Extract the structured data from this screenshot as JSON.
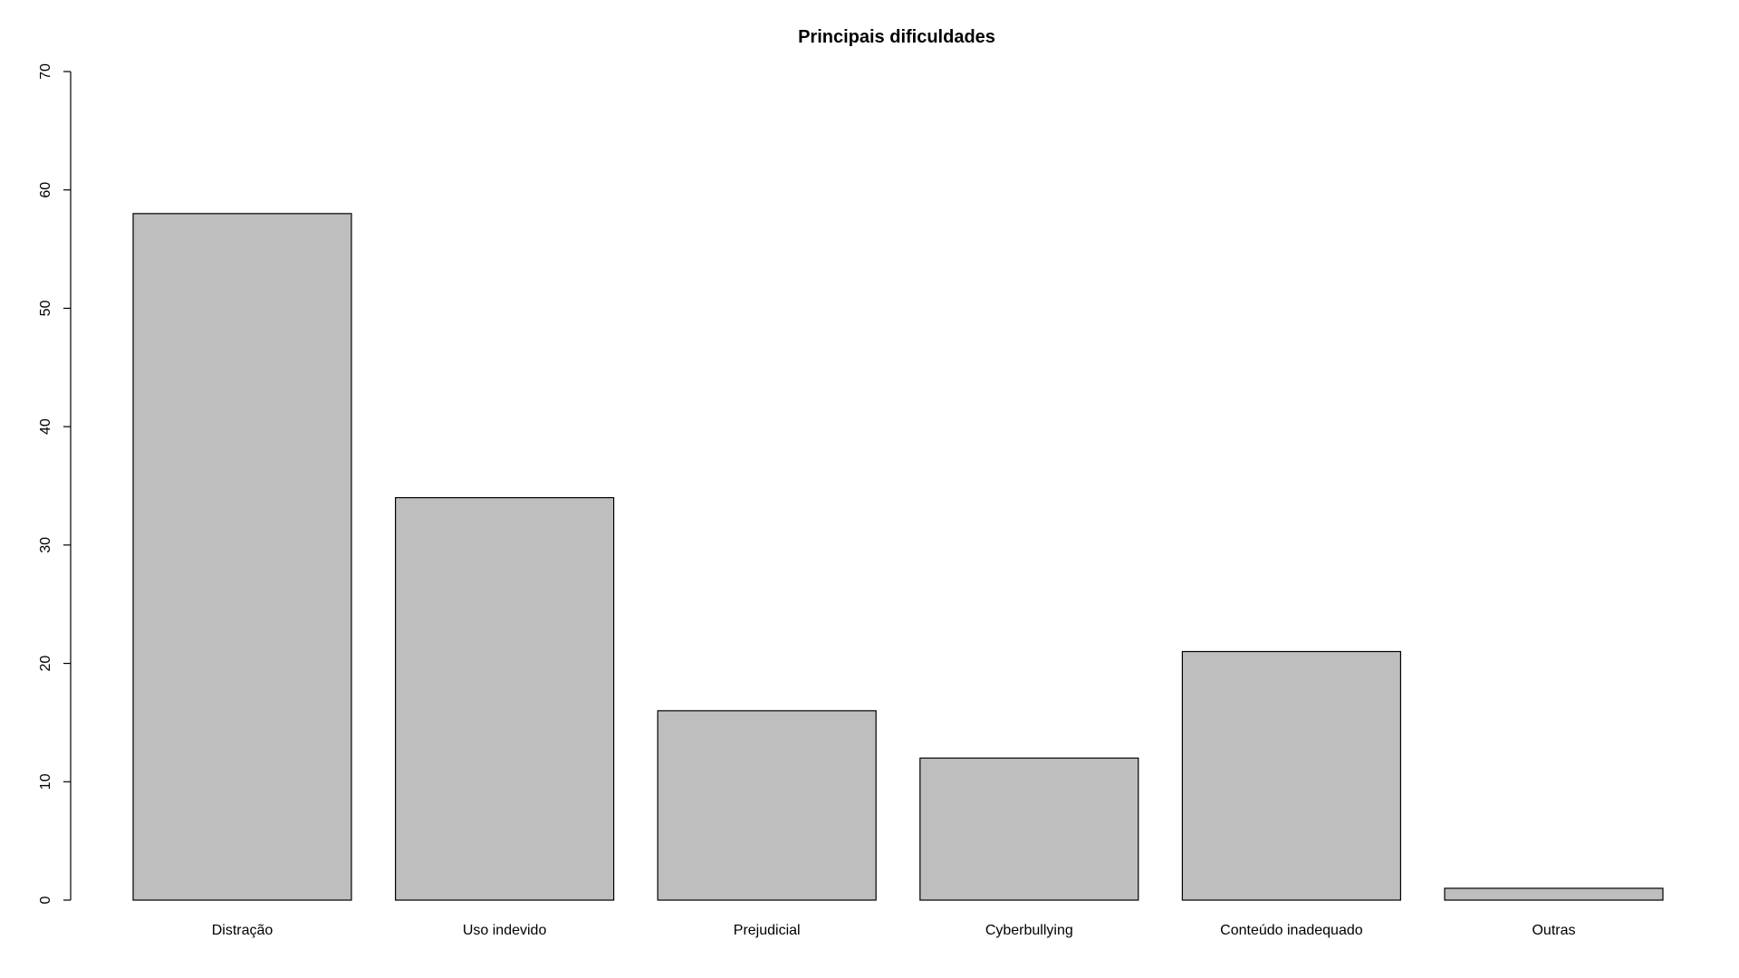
{
  "chart_data": {
    "type": "bar",
    "title": "Principais dificuldades",
    "xlabel": "",
    "ylabel": "",
    "categories": [
      "Distração",
      "Uso indevido",
      "Prejudicial",
      "Cyberbullying",
      "Conteúdo inadequado",
      "Outras"
    ],
    "values": [
      58,
      34,
      16,
      12,
      21,
      1
    ],
    "ylim": [
      0,
      70
    ],
    "yticks": [
      "0",
      "10",
      "20",
      "30",
      "40",
      "50",
      "60",
      "70"
    ],
    "grid": false,
    "legend": "none",
    "colors": {
      "bar_fill": "#bebebe",
      "bar_stroke": "#000000",
      "axis": "#000000",
      "background": "#ffffff"
    }
  }
}
